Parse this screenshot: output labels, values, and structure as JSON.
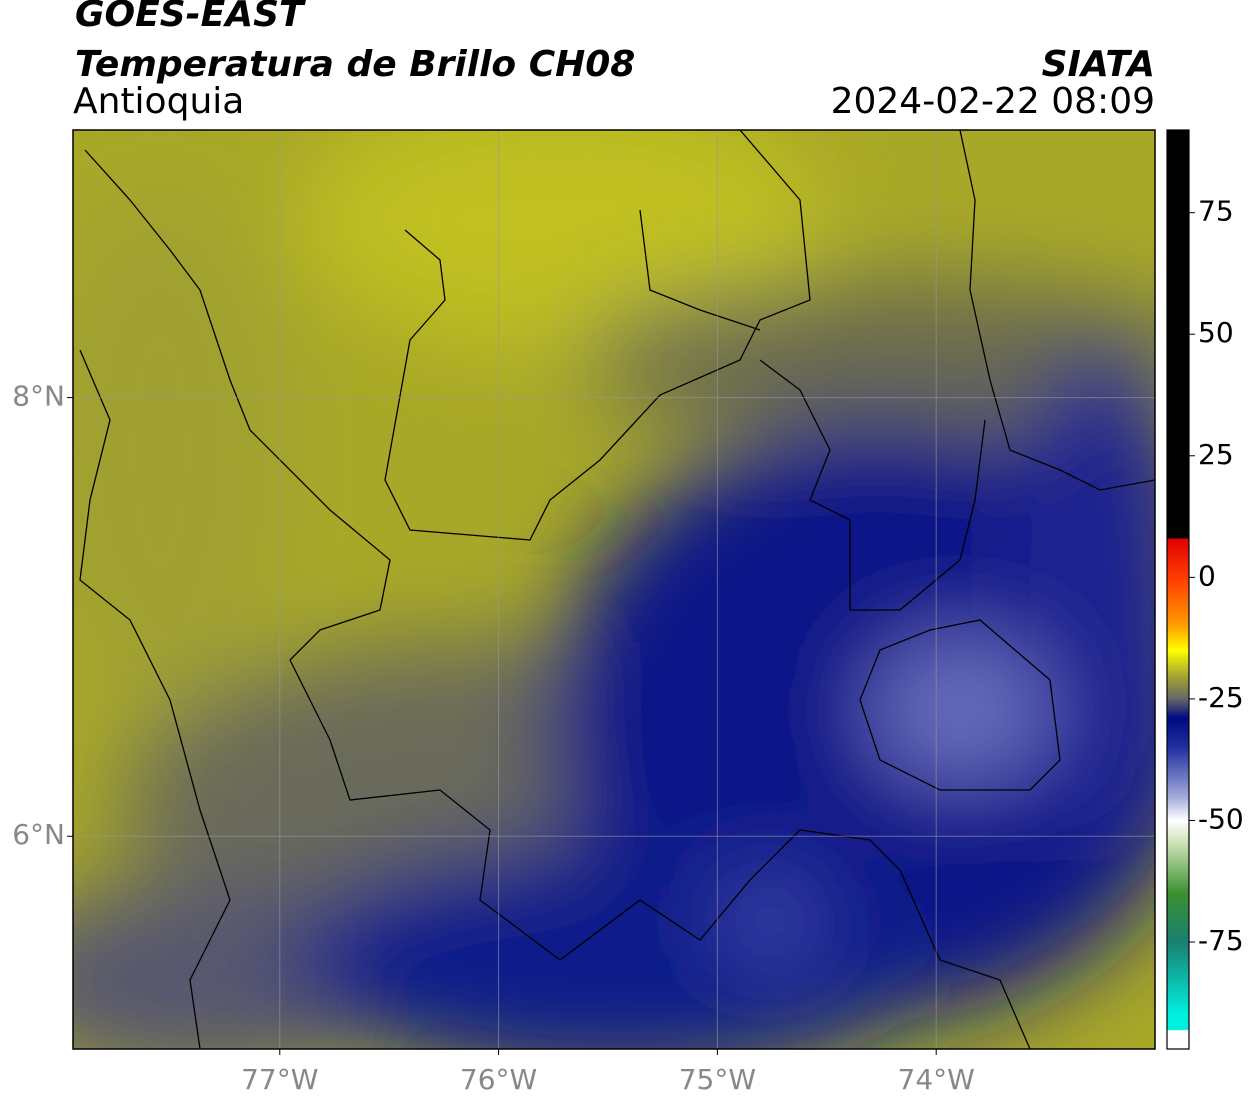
{
  "header": {
    "title": "GOES-EAST",
    "subtitle": "Temperatura de Brillo CH08",
    "region": "Antioquia",
    "source": "SIATA",
    "datetime": "2024-02-22 08:09"
  },
  "map": {
    "xlim": [
      -77.945,
      -73.0
    ],
    "ylim": [
      5.03,
      9.22
    ],
    "xticks": [
      {
        "value": -77,
        "label": "77°W"
      },
      {
        "value": -76,
        "label": "76°W"
      },
      {
        "value": -75,
        "label": "75°W"
      },
      {
        "value": -74,
        "label": "74°W"
      }
    ],
    "yticks": [
      {
        "value": 8,
        "label": "8°N"
      },
      {
        "value": 6,
        "label": "6°N"
      }
    ],
    "grid": true
  },
  "colorbar": {
    "clim": [
      -97,
      92
    ],
    "ticks": [
      75,
      50,
      25,
      0,
      -25,
      -50,
      -75
    ]
  }
}
